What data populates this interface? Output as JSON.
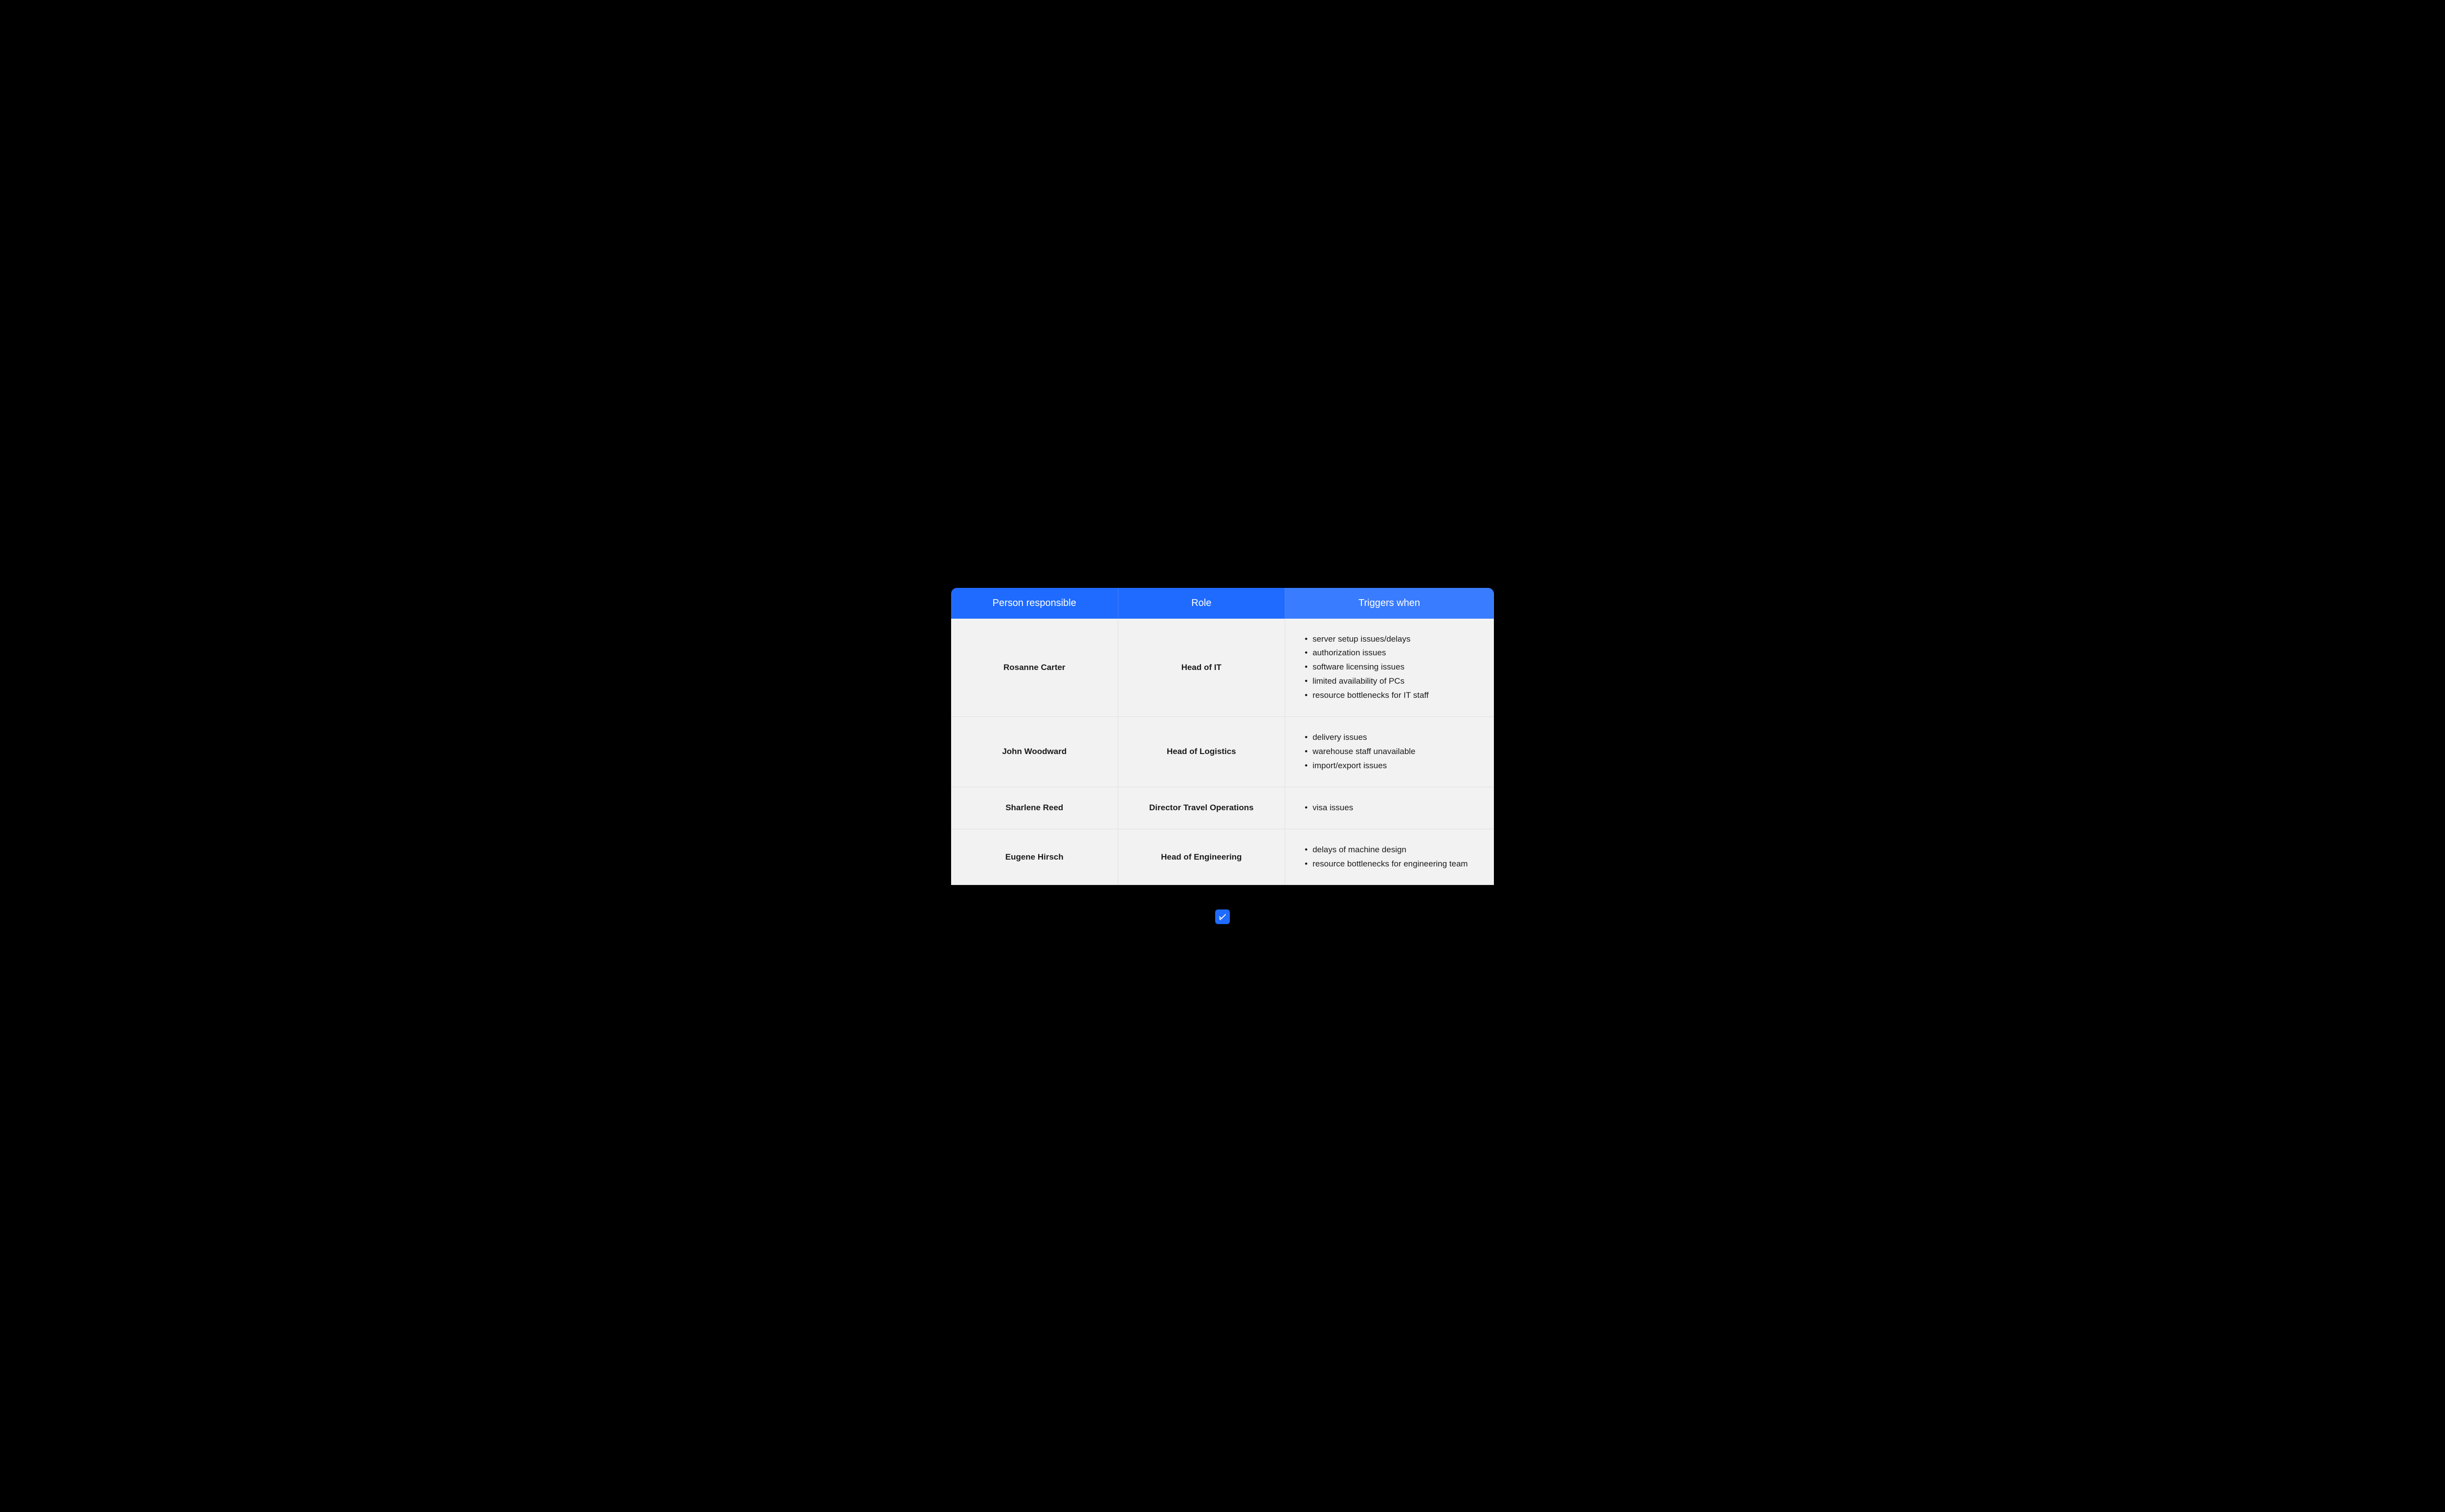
{
  "table": {
    "type": "table",
    "columns": [
      "Person responsible",
      "Role",
      "Triggers when"
    ],
    "header_bg_colors": [
      "#1f6bff",
      "#1f6bff",
      "#3a7cff"
    ],
    "header_text_color": "#ffffff",
    "header_fontsize": 20,
    "body_bg_color": "#f2f2f2",
    "body_text_color": "#1a1a1a",
    "body_fontsize": 17,
    "border_color": "#e0e0e0",
    "border_radius_top": 12,
    "rows": [
      {
        "person": "Rosanne Carter",
        "role": "Head of IT",
        "triggers": [
          "server setup issues/delays",
          "authorization issues",
          "software licensing issues",
          "limited availability of PCs",
          "resource bottlenecks for IT staff"
        ]
      },
      {
        "person": "John Woodward",
        "role": "Head of Logistics",
        "triggers": [
          "delivery issues",
          "warehouse staff unavailable",
          "import/export issues"
        ]
      },
      {
        "person": "Sharlene Reed",
        "role": "Director Travel Operations",
        "triggers": [
          "visa issues"
        ]
      },
      {
        "person": "Eugene Hirsch",
        "role": "Head of Engineering",
        "triggers": [
          "delays of machine design",
          "resource bottlenecks for engineering team"
        ]
      }
    ]
  },
  "page": {
    "background_color": "#000000",
    "logo_color": "#1f6bff"
  }
}
